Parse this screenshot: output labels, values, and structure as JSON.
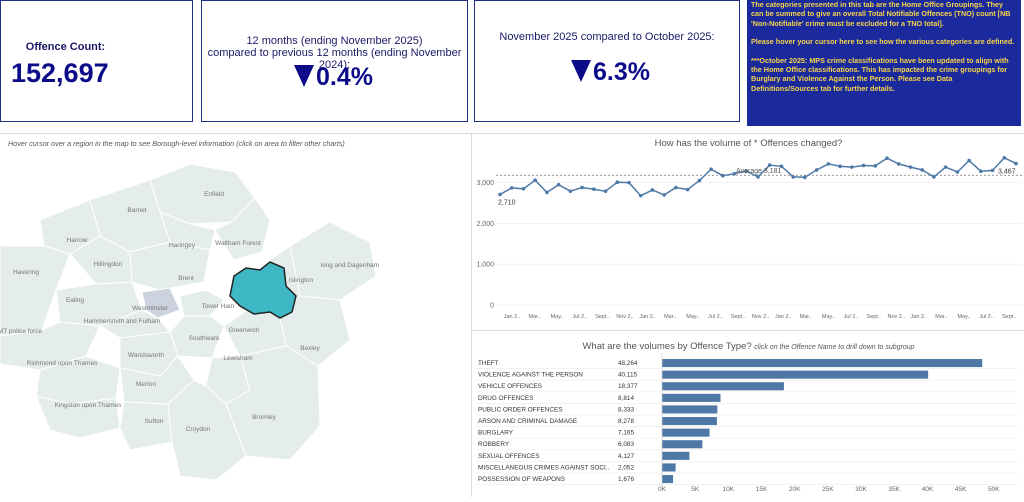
{
  "kpis": {
    "count_label": "Offence Count:",
    "count_value": "152,697",
    "yoy_line1": "12 months (ending November 2025)",
    "yoy_line2": "compared to previous 12 months (ending November 2024):",
    "yoy_value": "0.4%",
    "mom_label": "November 2025 compared to October 2025:",
    "mom_value": "6.3%"
  },
  "note": {
    "p1": "The categories presented in this tab are the Home Office Groupings. They can be summed to give an overall Total Notifiable Offences (TNO) count [NB 'Non-Notifiable' crime must be excluded for a TNO total].",
    "p2": "Please hover your cursor here to see how the various categories are defined.",
    "p3": "***October 2025: MPS crime classifications have been updated to align with the Home Office classifications. This has impacted the crime groupings for Burglary and Violence Against the Person. Please see Data Definitions/Sources tab for further details."
  },
  "map": {
    "hint": "Hover cursor over a region in the map to see Borough-level information (click on area to filter other charts)",
    "labels": [
      "Enfield",
      "Barnet",
      "Haringey",
      "Waltham Forest",
      "Harrow",
      "Havering",
      "Hillingdon",
      "Brent",
      "Islington",
      "king and Dagenham",
      "Ealing",
      "Westminster",
      "Tower Ham",
      "Hammersmith and Fulham",
      "Greenwich",
      "MT police force",
      "Southwark",
      "Bexley",
      "Wandsworth",
      "Lewisham",
      "Richmond upon Thames",
      "Merton",
      "Kingston upon Thames",
      "Bromley",
      "Sutton",
      "Croydon"
    ],
    "highlight_color": "#3db8c4",
    "base_color": "#e4ecec"
  },
  "line_chart": {
    "title_pre": "How has the volume of",
    "title_post": "* Offences changed?",
    "avg_label": "Average 3,181",
    "first_label": "2,710",
    "last_label": "3,467",
    "yticks": [
      "0",
      "1,000",
      "2,000",
      "3,000"
    ],
    "xticks": [
      "Jan 2..",
      "Mar..",
      "May..",
      "Jul 2..",
      "Sept..",
      "Nov 2..",
      "Jan 2..",
      "Mar..",
      "May..",
      "Jul 2..",
      "Sept..",
      "Nov 2..",
      "Jan 2..",
      "Mar..",
      "May..",
      "Jul 2..",
      "Sept..",
      "Nov 2..",
      "Jan 2..",
      "Mar..",
      "May..",
      "Jul 2..",
      "Sept.."
    ]
  },
  "bar_chart": {
    "title": "What are the volumes by Offence Type?",
    "subtitle": "click on the Offence Name to drill down to subgroup",
    "xticks": [
      "0K",
      "5K",
      "10K",
      "15K",
      "20K",
      "25K",
      "30K",
      "35K",
      "40K",
      "45K",
      "50K"
    ]
  },
  "colors": {
    "navy": "#1f2f86",
    "accent": "#0b0b8a",
    "bar": "#4e79a7",
    "line": "#4e79a7",
    "note_bg": "#1a2a9c",
    "note_text": "#f7d44a"
  },
  "chart_data": [
    {
      "type": "line",
      "title": "How has the volume of * Offences changed?",
      "xlabel": "",
      "ylabel": "",
      "ylim": [
        0,
        3800
      ],
      "average": 3181,
      "series": [
        {
          "values": [
            2710,
            2870,
            2850,
            3060,
            2760,
            2950,
            2790,
            2880,
            2840,
            2790,
            3010,
            3000,
            2680,
            2820,
            2700,
            2880,
            2830,
            3050,
            3330,
            3170,
            3220,
            3280,
            3140,
            3430,
            3400,
            3140,
            3130,
            3310,
            3460,
            3400,
            3380,
            3420,
            3410,
            3600,
            3460,
            3380,
            3310,
            3140,
            3380,
            3260,
            3540,
            3280,
            3300,
            3610,
            3467
          ]
        }
      ]
    },
    {
      "type": "bar",
      "title": "What are the volumes by Offence Type?",
      "orientation": "horizontal",
      "categories": [
        "THEFT",
        "VIOLENCE AGAINST THE PERSON",
        "VEHICLE OFFENCES",
        "DRUG OFFENCES",
        "PUBLIC ORDER OFFENCES",
        "ARSON AND CRIMINAL DAMAGE",
        "BURGLARY",
        "ROBBERY",
        "SEXUAL OFFENCES",
        "MISCELLANEOUS CRIMES AGAINST SOCI..",
        "POSSESSION OF WEAPONS"
      ],
      "values": [
        48264,
        40115,
        18377,
        8814,
        8333,
        8278,
        7165,
        6083,
        4127,
        2052,
        1676
      ],
      "value_labels": [
        "48,264",
        "40,115",
        "18,377",
        "8,814",
        "8,333",
        "8,278",
        "7,165",
        "6,083",
        "4,127",
        "2,052",
        "1,676"
      ],
      "xlim": [
        0,
        52000
      ]
    }
  ]
}
